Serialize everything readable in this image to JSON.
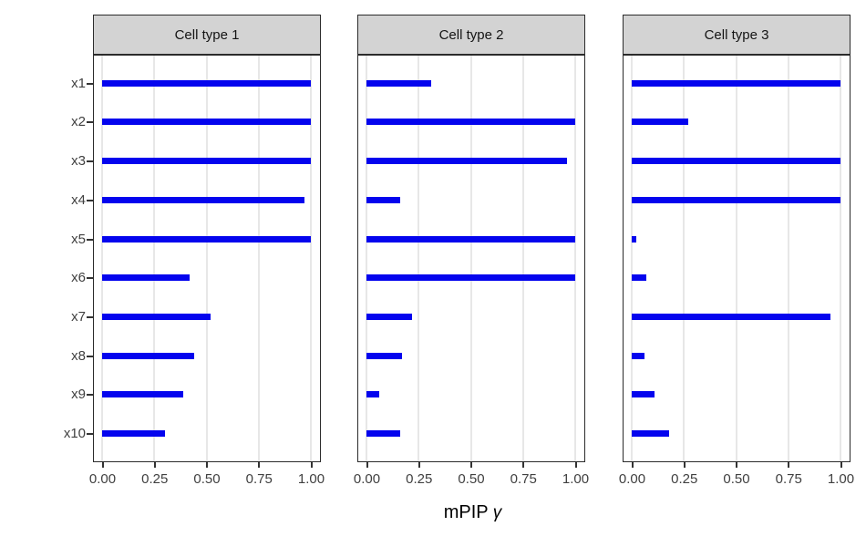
{
  "chart_data": {
    "type": "bar",
    "orientation": "horizontal",
    "title": "",
    "xlabel": "mPIP γ",
    "xlabel_main": "mPIP",
    "xlabel_symbol": "γ",
    "ylabel": "",
    "categories": [
      "x1",
      "x2",
      "x3",
      "x4",
      "x5",
      "x6",
      "x7",
      "x8",
      "x9",
      "x10"
    ],
    "facets": [
      {
        "label": "Cell type 1",
        "values": [
          1.0,
          1.0,
          1.0,
          0.97,
          1.0,
          0.42,
          0.52,
          0.44,
          0.39,
          0.3
        ]
      },
      {
        "label": "Cell type 2",
        "values": [
          0.31,
          1.0,
          0.96,
          0.16,
          1.0,
          1.0,
          0.22,
          0.17,
          0.06,
          0.16
        ]
      },
      {
        "label": "Cell type 3",
        "values": [
          1.0,
          0.27,
          1.0,
          1.0,
          0.02,
          0.07,
          0.95,
          0.06,
          0.11,
          0.18
        ]
      }
    ],
    "xlim": [
      0,
      1
    ],
    "x_ticks": [
      0,
      0.25,
      0.5,
      0.75,
      1.0
    ],
    "x_tick_labels": [
      "0.00",
      "0.25",
      "0.50",
      "0.75",
      "1.00"
    ],
    "grid": "vertical-major-only",
    "legend": "none",
    "colors": {
      "bar": "#0404ee",
      "strip_background": "#d3d3d3",
      "panel_border": "#2b2b2b",
      "gridline": "#e7e7e7",
      "axis_text": "#404040",
      "axis_title": "#000000"
    }
  }
}
